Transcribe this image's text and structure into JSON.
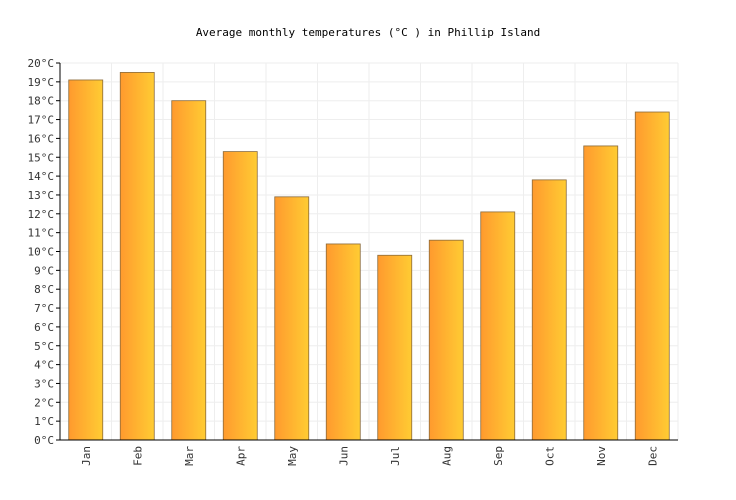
{
  "chart_data": {
    "type": "bar",
    "title": "Average monthly temperatures (°C ) in Phillip Island",
    "xlabel": "",
    "ylabel": "",
    "categories": [
      "Jan",
      "Feb",
      "Mar",
      "Apr",
      "May",
      "Jun",
      "Jul",
      "Aug",
      "Sep",
      "Oct",
      "Nov",
      "Dec"
    ],
    "values": [
      19.1,
      19.5,
      18.0,
      15.3,
      12.9,
      10.4,
      9.8,
      10.6,
      12.1,
      13.8,
      15.6,
      17.4
    ],
    "ylim": [
      0,
      20
    ],
    "y_ticks": [
      "0°C",
      "1°C",
      "2°C",
      "3°C",
      "4°C",
      "5°C",
      "6°C",
      "7°C",
      "8°C",
      "9°C",
      "10°C",
      "11°C",
      "12°C",
      "13°C",
      "14°C",
      "15°C",
      "16°C",
      "17°C",
      "18°C",
      "19°C",
      "20°C"
    ],
    "grid": true,
    "legend": "none",
    "colors": {
      "bar_start": "#ff9a2e",
      "bar_end": "#ffcc33",
      "bar_stroke": "#8a6a3a",
      "grid": "#eeeeee",
      "axis": "#000000"
    }
  }
}
